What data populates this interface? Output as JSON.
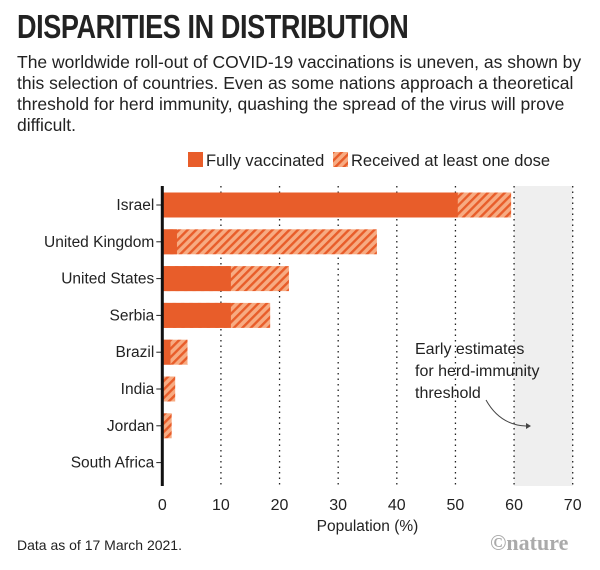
{
  "title": "DISPARITIES IN DISTRIBUTION",
  "subtitle": "The worldwide roll-out of COVID-19 vaccinations is uneven, as shown by this selection of countries. Even as some nations approach a theoretical threshold for herd immunity, quashing the spread of the virus will prove difficult.",
  "footnote": "Data as of 17 March 2021.",
  "logo": "©nature",
  "colors": {
    "fully": "#e85d2a",
    "one_dose_bg": "#f7ab82",
    "one_dose_stripe": "#e85d2a",
    "threshold_band": "#efefef"
  },
  "chart_data": {
    "type": "bar",
    "orientation": "horizontal",
    "stacked": "overlay",
    "categories": [
      "Israel",
      "United Kingdom",
      "United States",
      "Serbia",
      "Brazil",
      "India",
      "Jordan",
      "South Africa"
    ],
    "series": [
      {
        "name": "Fully vaccinated",
        "values": [
          50.4,
          2.5,
          11.7,
          11.7,
          1.4,
          0.1,
          0.1,
          0
        ]
      },
      {
        "name": "Received at least one dose",
        "values": [
          59.5,
          36.6,
          21.6,
          18.4,
          4.3,
          2.2,
          1.6,
          0
        ]
      }
    ],
    "xlabel": "Population (%)",
    "xlim": [
      0,
      70
    ],
    "xticks": [
      0,
      10,
      20,
      30,
      40,
      50,
      60,
      70
    ],
    "grid": "vertical dotted",
    "legend": "top",
    "annotation": {
      "text": [
        "Early estimates",
        "for herd-immunity",
        "threshold"
      ],
      "band": [
        60,
        70
      ]
    }
  }
}
